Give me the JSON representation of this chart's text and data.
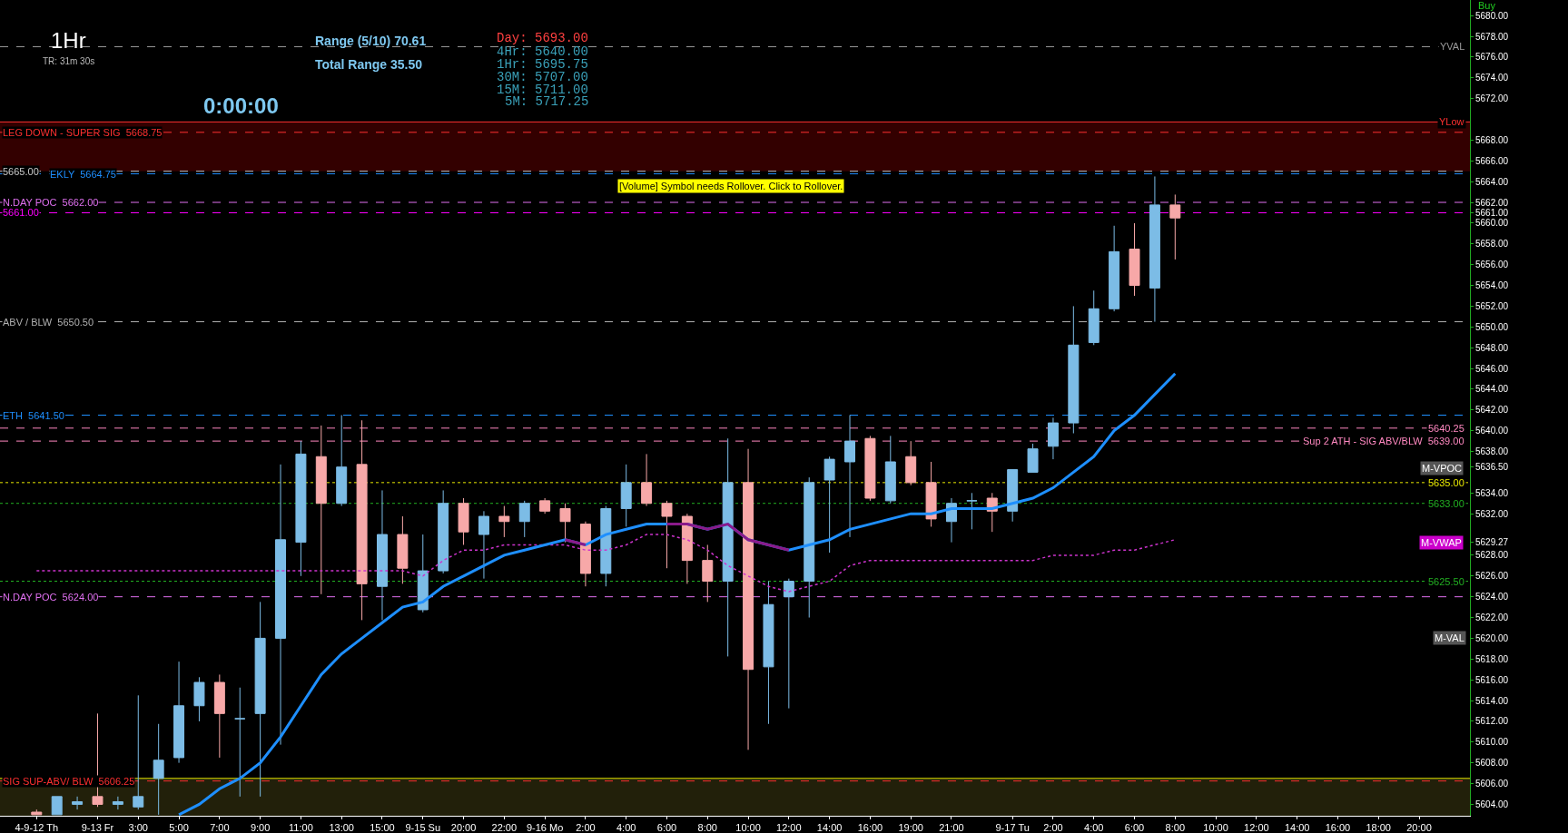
{
  "chart_data": {
    "type": "candlestick",
    "categories": [
      "4-9-12 Th",
      null,
      null,
      "9-13 Fr",
      null,
      "3:00",
      null,
      "5:00",
      null,
      "7:00",
      null,
      "9:00",
      null,
      "11:00",
      null,
      "13:00",
      null,
      "15:00",
      null,
      "9-15 Su",
      null,
      "20:00",
      null,
      "22:00",
      null,
      "9-16 Mo",
      null,
      "2:00",
      null,
      "4:00",
      null,
      "6:00",
      null,
      "8:00",
      null,
      "10:00",
      null,
      "12:00",
      null,
      "14:00",
      null,
      "16:00",
      null,
      "19:00",
      null,
      "21:00",
      null,
      null,
      "9-17 Tu",
      null,
      "2:00",
      null,
      "4:00",
      null,
      "6:00",
      null,
      "8:00",
      null,
      "10:00",
      null,
      "12:00",
      null,
      "14:00",
      null,
      "16:00",
      null,
      "18:00",
      null,
      "20:00",
      null,
      null
    ],
    "ohlc": [
      [
        5603.25,
        5603.5,
        5603,
        5603
      ],
      [
        5603,
        5604.75,
        5603,
        5604.75
      ],
      [
        5604,
        5604.75,
        5603.5,
        5604.25
      ],
      [
        5604.75,
        5612.75,
        5603.75,
        5604
      ],
      [
        5604,
        5604.75,
        5603.5,
        5604.25
      ],
      [
        5603.75,
        5614.5,
        5603.5,
        5604.75
      ],
      [
        5606.5,
        5611.75,
        5603,
        5608.25
      ],
      [
        5608.5,
        5617.75,
        5608,
        5613.5
      ],
      [
        5613.5,
        5616.25,
        5612,
        5615.75
      ],
      [
        5615.75,
        5616.5,
        5608.5,
        5612.75
      ],
      [
        5612.25,
        5615.25,
        5604.75,
        5612.25
      ],
      [
        5612.75,
        5623.5,
        5604.75,
        5620
      ],
      [
        5620,
        5636.75,
        5609.75,
        5629.5
      ],
      [
        5629.25,
        5639,
        5626,
        5637.75
      ],
      [
        5637.5,
        5640.5,
        5624.25,
        5633
      ],
      [
        5633,
        5641.5,
        5632.75,
        5636.5
      ],
      [
        5636.75,
        5641,
        5621.75,
        5625.25
      ],
      [
        5625,
        5634.25,
        5621.75,
        5630
      ],
      [
        5630,
        5631.75,
        5625.25,
        5626.75
      ],
      [
        5622.75,
        5630,
        5622.5,
        5626.5
      ],
      [
        5626.5,
        5634.25,
        5626.25,
        5633
      ],
      [
        5633,
        5633.5,
        5629,
        5630.25
      ],
      [
        5630,
        5632.25,
        5625.75,
        5631.75
      ],
      [
        5631.75,
        5632.75,
        5629.75,
        5631.25
      ],
      [
        5631.25,
        5633.25,
        5629.75,
        5633
      ],
      [
        5633.25,
        5633.5,
        5632,
        5632.25
      ],
      [
        5632.5,
        5633,
        5629.25,
        5631.25
      ],
      [
        5631,
        5631.25,
        5625,
        5626.25
      ],
      [
        5626.25,
        5632.75,
        5625,
        5632.5
      ],
      [
        5632.5,
        5636.75,
        5630.75,
        5635
      ],
      [
        5635,
        5637.75,
        5632.75,
        5633
      ],
      [
        5633,
        5633.25,
        5626.75,
        5631.75
      ],
      [
        5631.75,
        5632,
        5625.25,
        5627.5
      ],
      [
        5627.5,
        5629,
        5623.5,
        5625.5
      ],
      [
        5625.5,
        5639.25,
        5618.25,
        5635
      ],
      [
        5635,
        5638.25,
        5609.25,
        5617
      ],
      [
        5617.25,
        5625.5,
        5611.75,
        5623.25
      ],
      [
        5624,
        5625.75,
        5613.25,
        5625.5
      ],
      [
        5625.5,
        5635.5,
        5622,
        5635
      ],
      [
        5635.25,
        5637.5,
        5628.25,
        5637.25
      ],
      [
        5637,
        5641.5,
        5629.75,
        5639
      ],
      [
        5639.25,
        5639.5,
        5633.25,
        5633.5
      ],
      [
        5633.25,
        5639.5,
        5633,
        5637
      ],
      [
        5637.5,
        5639,
        5634.75,
        5635
      ],
      [
        5635,
        5637,
        5630.75,
        5631.5
      ],
      [
        5631.25,
        5633.5,
        5629.25,
        5633
      ],
      [
        5633.25,
        5634,
        5630.5,
        5633.25
      ],
      [
        5633.5,
        5634,
        5630.25,
        5632.25
      ],
      [
        5632.25,
        5636.25,
        5631.25,
        5636.25
      ],
      [
        5636,
        5638.75,
        5636,
        5638.25
      ],
      [
        5638.5,
        5641.25,
        5637.25,
        5640.75
      ],
      [
        5640.75,
        5652,
        5639.75,
        5648.25
      ],
      [
        5648.5,
        5653.5,
        5648.25,
        5651.75
      ],
      [
        5651.75,
        5659.75,
        5651.5,
        5657.25
      ],
      [
        5657.5,
        5660,
        5653,
        5654
      ],
      [
        5653.75,
        5664.5,
        5650.5,
        5661.75
      ],
      [
        5661.75,
        5662.75,
        5656.5,
        5660.5
      ],
      null,
      null,
      null,
      null,
      null,
      null,
      null,
      null,
      null,
      null,
      null,
      null,
      null,
      null
    ],
    "colors": [
      "#f7a8a8",
      "#7cbce6",
      "#7cbce6",
      "#f7a8a8",
      "#7cbce6",
      "#7cbce6",
      "#7cbce6",
      "#7cbce6",
      "#7cbce6",
      "#f7a8a8",
      "#7cbce6",
      "#7cbce6",
      "#7cbce6",
      "#7cbce6",
      "#f7a8a8",
      "#7cbce6",
      "#f7a8a8",
      "#7cbce6",
      "#f7a8a8",
      "#7cbce6",
      "#7cbce6",
      "#f7a8a8",
      "#7cbce6",
      "#f7a8a8",
      "#7cbce6",
      "#f7a8a8",
      "#f7a8a8",
      "#f7a8a8",
      "#7cbce6",
      "#7cbce6",
      "#f7a8a8",
      "#f7a8a8",
      "#f7a8a8",
      "#f7a8a8",
      "#7cbce6",
      "#f7a8a8",
      "#7cbce6",
      "#7cbce6",
      "#7cbce6",
      "#7cbce6",
      "#7cbce6",
      "#f7a8a8",
      "#7cbce6",
      "#f7a8a8",
      "#f7a8a8",
      "#7cbce6",
      "#7cbce6",
      "#f7a8a8",
      "#7cbce6",
      "#7cbce6",
      "#7cbce6",
      "#7cbce6",
      "#7cbce6",
      "#7cbce6",
      "#f7a8a8",
      "#7cbce6",
      "#f7a8a8",
      null,
      null,
      null,
      null,
      null,
      null,
      null,
      null,
      null,
      null,
      null,
      null,
      null,
      null
    ],
    "series": [
      {
        "type": "line",
        "color": "#cc33cc",
        "line_style": "dotted",
        "values": [
          5626.5,
          5626.5,
          5626.5,
          5626.5,
          5626.5,
          5626.5,
          5626.5,
          5626.5,
          5626.5,
          5626.5,
          5626.5,
          5626.5,
          5626.5,
          5626.5,
          5626.5,
          5626.5,
          5626.5,
          5626.5,
          5626.5,
          5626,
          5627.5,
          5628.5,
          5628.5,
          5629,
          5629,
          5629,
          5629,
          5628.5,
          5628.5,
          5629,
          5630,
          5630,
          5629.5,
          5628.5,
          5627,
          5626,
          5625,
          5624.5,
          5625,
          5625.5,
          5627,
          5627.5,
          5627.5,
          5627.5,
          5627.5,
          5627.5,
          5627.5,
          5627.5,
          5627.5,
          5627.5,
          5628,
          5628,
          5628,
          5628.5,
          5628.5,
          5629,
          5629.5,
          null,
          null,
          null,
          null,
          null,
          null,
          null,
          null,
          null,
          null,
          null,
          null,
          null,
          null
        ]
      },
      {
        "type": "line",
        "color": "#1e8fff",
        "values": [
          null,
          null,
          null,
          null,
          null,
          null,
          null,
          5603,
          5604,
          5605.5,
          5606.5,
          5608,
          5610.5,
          5613.5,
          5616.5,
          5618.5,
          5620,
          5621.5,
          5623,
          5623.5,
          5625,
          5626,
          5627,
          5628,
          5628.5,
          5629,
          5629.5,
          5629,
          5630,
          5630.5,
          5631,
          5631,
          5631,
          5630.5,
          5631,
          5629.5,
          5629,
          5628.5,
          5629,
          5629.5,
          5630.5,
          5631,
          5631.5,
          5632,
          5632,
          5632.5,
          5632.5,
          5632.5,
          5633,
          5633.5,
          5634.5,
          5636,
          5637.5,
          5640,
          5641.5,
          5643.5,
          5645.5,
          null,
          null,
          null,
          null,
          null,
          null,
          null,
          null,
          null,
          null,
          null,
          null,
          null,
          null
        ]
      },
      {
        "type": "line",
        "color": "#8a1a8a",
        "values": [
          null,
          null,
          null,
          null,
          null,
          null,
          null,
          null,
          null,
          null,
          null,
          null,
          null,
          null,
          null,
          null,
          null,
          null,
          null,
          null,
          null,
          null,
          null,
          null,
          null,
          null,
          5629.5,
          5629,
          null,
          null,
          null,
          5631,
          5631,
          5630.5,
          5631,
          5629.5,
          5629,
          5628.5,
          null,
          null,
          null,
          null,
          null,
          null,
          null,
          null,
          null,
          null,
          null,
          null,
          null,
          null,
          null,
          null,
          null,
          null,
          null,
          null,
          null,
          null,
          null,
          null,
          null,
          null,
          null,
          null,
          null,
          null,
          null,
          null,
          null
        ]
      }
    ],
    "ylim": [
      5602.9,
      5681.5
    ],
    "yticks": [
      {
        "value": 5604,
        "label": "5604.00"
      },
      {
        "value": 5606,
        "label": "5606.00"
      },
      {
        "value": 5608,
        "label": "5608.00"
      },
      {
        "value": 5610,
        "label": "5610.00"
      },
      {
        "value": 5612,
        "label": "5612.00"
      },
      {
        "value": 5614,
        "label": "5614.00"
      },
      {
        "value": 5616,
        "label": "5616.00"
      },
      {
        "value": 5618,
        "label": "5618.00"
      },
      {
        "value": 5620,
        "label": "5620.00"
      },
      {
        "value": 5622,
        "label": "5622.00"
      },
      {
        "value": 5624,
        "label": "5624.00"
      },
      {
        "value": 5626,
        "label": "5626.00"
      },
      {
        "value": 5628,
        "label": "5628.00"
      },
      {
        "value": 5629.27,
        "label": "5629.27"
      },
      {
        "value": 5632,
        "label": "5632.00"
      },
      {
        "value": 5634,
        "label": "5634.00"
      },
      {
        "value": 5636.5,
        "label": "5636.50"
      },
      {
        "value": 5638,
        "label": "5638.00"
      },
      {
        "value": 5640,
        "label": "5640.00"
      },
      {
        "value": 5642,
        "label": "5642.00"
      },
      {
        "value": 5644,
        "label": "5644.00"
      },
      {
        "value": 5646,
        "label": "5646.00"
      },
      {
        "value": 5648,
        "label": "5648.00"
      },
      {
        "value": 5650,
        "label": "5650.00"
      },
      {
        "value": 5652,
        "label": "5652.00"
      },
      {
        "value": 5654,
        "label": "5654.00"
      },
      {
        "value": 5656,
        "label": "5656.00"
      },
      {
        "value": 5658,
        "label": "5658.00"
      },
      {
        "value": 5660,
        "label": "5660.00"
      },
      {
        "value": 5661,
        "label": "5661.00"
      },
      {
        "value": 5662,
        "label": "5662.00"
      },
      {
        "value": 5664,
        "label": "5664.00"
      },
      {
        "value": 5666,
        "label": "5666.00"
      },
      {
        "value": 5668,
        "label": "5668.00"
      },
      {
        "value": 5672,
        "label": "5672.00"
      },
      {
        "value": 5674,
        "label": "5674.00"
      },
      {
        "value": 5676,
        "label": "5676.00"
      },
      {
        "value": 5678,
        "label": "5678.00"
      },
      {
        "value": 5680,
        "label": "5680.00"
      }
    ],
    "bands": [
      {
        "axis": "y",
        "from": 5665,
        "to": 5669.75,
        "color": "#330000"
      },
      {
        "axis": "y",
        "from": 5602.9,
        "to": 5606.5,
        "color": "#22200a"
      }
    ],
    "ref_lines": [
      {
        "axis": "y",
        "value": 5677,
        "color": "#9a9a9a",
        "line_style": "dashed"
      },
      {
        "axis": "y",
        "value": 5669.75,
        "color": "#ff3030",
        "line_style": "solid"
      },
      {
        "axis": "y",
        "value": 5668.75,
        "label": "LEG DOWN - SUPER SIG  5668.75",
        "color": "#ff3030",
        "line_style": "dashed"
      },
      {
        "axis": "y",
        "value": 5665,
        "label": "5665.00",
        "color": "#c8c8c8",
        "line_style": "dashed"
      },
      {
        "axis": "y",
        "value": 5664.75,
        "label": "EKLY  5664.75",
        "color": "#1e8fff",
        "line_style": "dashed"
      },
      {
        "axis": "y",
        "value": 5662,
        "label": "N.DAY POC  5662.00",
        "color": "#e070f0",
        "line_style": "dashed"
      },
      {
        "axis": "y",
        "value": 5661,
        "label": "5661.00",
        "color": "#ff00ff",
        "line_style": "dashed"
      },
      {
        "axis": "y",
        "value": 5650.5,
        "label": "ABV / BLW  5650.50",
        "color": "#b0b0b0",
        "line_style": "dashed"
      },
      {
        "axis": "y",
        "value": 5641.5,
        "label": "ETH  5641.50",
        "color": "#1e8fff",
        "line_style": "dashed"
      },
      {
        "axis": "y",
        "value": 5640.25,
        "color": "#ff88c0",
        "line_style": "dashed"
      },
      {
        "axis": "y",
        "value": 5639,
        "color": "#ff88c0",
        "line_style": "dashed"
      },
      {
        "axis": "y",
        "value": 5635,
        "color": "#e8e800",
        "line_style": "dotted"
      },
      {
        "axis": "y",
        "value": 5633,
        "color": "#22b022",
        "line_style": "dotted"
      },
      {
        "axis": "y",
        "value": 5625.5,
        "color": "#22b022",
        "line_style": "dotted"
      },
      {
        "axis": "y",
        "value": 5624,
        "label": "N.DAY POC  5624.00",
        "color": "#e070f0",
        "line_style": "dashed"
      },
      {
        "axis": "y",
        "value": 5606.5,
        "color": "#e8e800",
        "line_style": "solid"
      },
      {
        "axis": "y",
        "value": 5606.25,
        "label": "SIG SUP-ABV/ BLW  5606.25",
        "color": "#ff3030",
        "line_style": "dashed"
      }
    ],
    "annotations": [
      "1Hr",
      "TR: 31m 30s",
      "Range (5/10) 70.61",
      "Total Range 35.50",
      "0:00:00",
      "Day: 5693.00",
      "4Hr: 5640.00",
      "1Hr: 5695.75",
      "30M: 5707.00",
      "15M: 5711.00",
      "5M: 5717.25",
      "[Volume] Symbol needs Rollover. Click to Rollover.",
      "Buy",
      {
        "text": "YVAL",
        "y": 5677
      },
      {
        "text": "YLow",
        "y": 5669.75
      },
      {
        "text": "5640.25",
        "y": 5640.25
      },
      {
        "text": "Sup 2 ATH - SIG ABV/BLW  5639.00",
        "y": 5639
      },
      "M-VPOC",
      {
        "text": "5635.00",
        "y": 5635
      },
      {
        "text": "5633.00",
        "y": 5633
      },
      "M-VWAP",
      {
        "text": "5625.50",
        "y": 5625.5
      },
      {
        "text": "M-VAL",
        "y": 5620
      }
    ],
    "grid": false
  }
}
